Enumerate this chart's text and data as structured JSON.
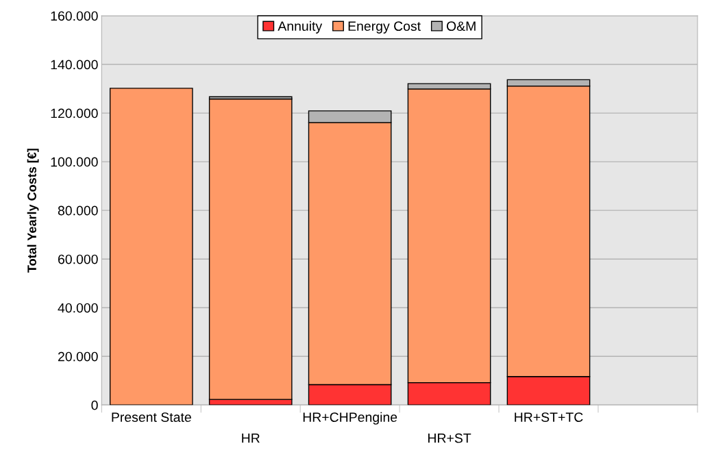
{
  "chart_data": {
    "type": "bar",
    "stacked": true,
    "ylabel": "Total Yearly Costs [€]",
    "categories": [
      "Present State",
      "HR",
      "HR+CHPengine",
      "HR+ST",
      "HR+ST+TC",
      null
    ],
    "series": [
      {
        "name": "Annuity",
        "color": "#ff3333",
        "values": [
          0,
          2300,
          8400,
          9200,
          11700,
          null
        ]
      },
      {
        "name": "Energy Cost",
        "color": "#ff9966",
        "values": [
          130200,
          123500,
          107700,
          120700,
          119400,
          null
        ]
      },
      {
        "name": "O&M",
        "color": "#b3b3b3",
        "values": [
          0,
          900,
          4800,
          2200,
          2600,
          null
        ]
      }
    ],
    "ylim": [
      0,
      160000
    ],
    "yticks": [
      {
        "value": 0,
        "label": "0"
      },
      {
        "value": 20000,
        "label": "20.000"
      },
      {
        "value": 40000,
        "label": "40.000"
      },
      {
        "value": 60000,
        "label": "60.000"
      },
      {
        "value": 80000,
        "label": "80.000"
      },
      {
        "value": 100000,
        "label": "100.000"
      },
      {
        "value": 120000,
        "label": "120.000"
      },
      {
        "value": 140000,
        "label": "140.000"
      },
      {
        "value": 160000,
        "label": "160.000"
      }
    ],
    "grid": "y",
    "legend": "top"
  }
}
